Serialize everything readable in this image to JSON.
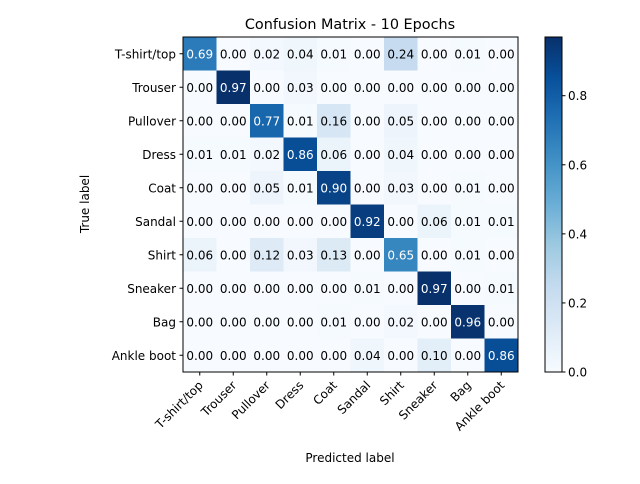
{
  "chart_data": {
    "type": "heatmap",
    "title": "Confusion Matrix - 10 Epochs",
    "xlabel": "Predicted label",
    "ylabel": "True label",
    "classes": [
      "T-shirt/top",
      "Trouser",
      "Pullover",
      "Dress",
      "Coat",
      "Sandal",
      "Shirt",
      "Sneaker",
      "Bag",
      "Ankle boot"
    ],
    "values": [
      [
        0.69,
        0.0,
        0.02,
        0.04,
        0.01,
        0.0,
        0.24,
        0.0,
        0.01,
        0.0
      ],
      [
        0.0,
        0.97,
        0.0,
        0.03,
        0.0,
        0.0,
        0.0,
        0.0,
        0.0,
        0.0
      ],
      [
        0.0,
        0.0,
        0.77,
        0.01,
        0.16,
        0.0,
        0.05,
        0.0,
        0.0,
        0.0
      ],
      [
        0.01,
        0.01,
        0.02,
        0.86,
        0.06,
        0.0,
        0.04,
        0.0,
        0.0,
        0.0
      ],
      [
        0.0,
        0.0,
        0.05,
        0.01,
        0.9,
        0.0,
        0.03,
        0.0,
        0.01,
        0.0
      ],
      [
        0.0,
        0.0,
        0.0,
        0.0,
        0.0,
        0.92,
        0.0,
        0.06,
        0.01,
        0.01
      ],
      [
        0.06,
        0.0,
        0.12,
        0.03,
        0.13,
        0.0,
        0.65,
        0.0,
        0.01,
        0.0
      ],
      [
        0.0,
        0.0,
        0.0,
        0.0,
        0.0,
        0.01,
        0.0,
        0.97,
        0.0,
        0.01
      ],
      [
        0.0,
        0.0,
        0.0,
        0.0,
        0.01,
        0.0,
        0.02,
        0.0,
        0.96,
        0.0
      ],
      [
        0.0,
        0.0,
        0.0,
        0.0,
        0.0,
        0.04,
        0.0,
        0.1,
        0.0,
        0.86
      ]
    ],
    "colormap": "Blues",
    "color_range": [
      0.0,
      0.97
    ],
    "colorbar_ticks": [
      "0.0",
      "0.2",
      "0.4",
      "0.6",
      "0.8"
    ],
    "colorbar_tick_values": [
      0.0,
      0.2,
      0.4,
      0.6,
      0.8
    ],
    "text_color_dark": "#000000",
    "text_color_light": "#ffffff",
    "grid": false,
    "colorbar_placement": "right"
  }
}
